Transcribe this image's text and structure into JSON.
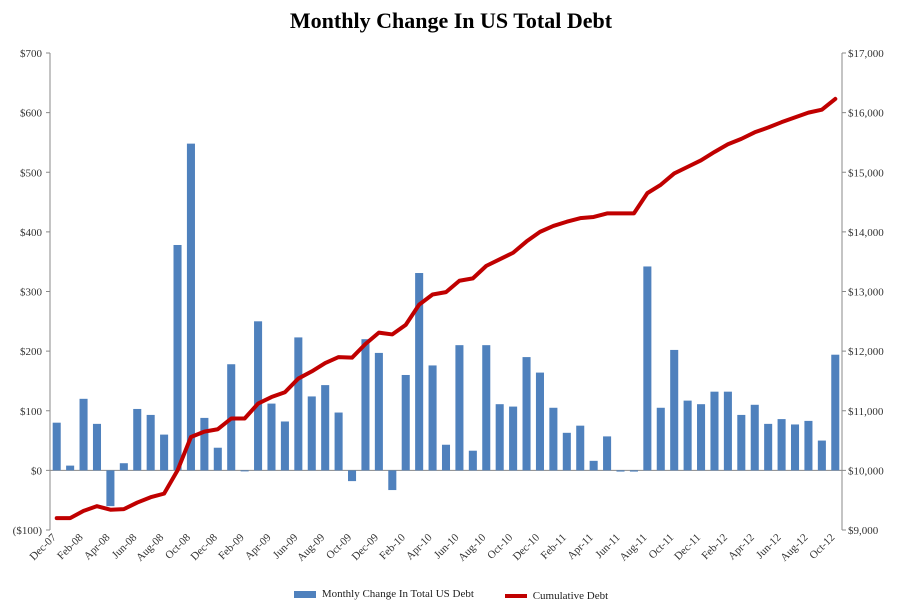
{
  "chart_data": {
    "type": "bar",
    "title": "Monthly Change In US Total Debt",
    "xlabel": "",
    "ylabel": "",
    "y_left": {
      "min": -100,
      "max": 700,
      "ticks": [
        "($100)",
        "$0",
        "$100",
        "$200",
        "$300",
        "$400",
        "$500",
        "$600",
        "$700"
      ]
    },
    "y_right": {
      "min": 9000,
      "max": 17000,
      "ticks": [
        "$9,000",
        "$10,000",
        "$11,000",
        "$12,000",
        "$13,000",
        "$14,000",
        "$15,000",
        "$16,000",
        "$17,000"
      ]
    },
    "categories": [
      "Dec-07",
      "Jan-08",
      "Feb-08",
      "Mar-08",
      "Apr-08",
      "May-08",
      "Jun-08",
      "Jul-08",
      "Aug-08",
      "Sep-08",
      "Oct-08",
      "Nov-08",
      "Dec-08",
      "Jan-09",
      "Feb-09",
      "Mar-09",
      "Apr-09",
      "May-09",
      "Jun-09",
      "Jul-09",
      "Aug-09",
      "Sep-09",
      "Oct-09",
      "Nov-09",
      "Dec-09",
      "Jan-10",
      "Feb-10",
      "Mar-10",
      "Apr-10",
      "May-10",
      "Jun-10",
      "Jul-10",
      "Aug-10",
      "Sep-10",
      "Oct-10",
      "Nov-10",
      "Dec-10",
      "Jan-11",
      "Feb-11",
      "Mar-11",
      "Apr-11",
      "May-11",
      "Jun-11",
      "Jul-11",
      "Aug-11",
      "Sep-11",
      "Oct-11",
      "Nov-11",
      "Dec-11",
      "Jan-12",
      "Feb-12",
      "Mar-12",
      "Apr-12",
      "May-12",
      "Jun-12",
      "Jul-12",
      "Aug-12",
      "Sep-12",
      "Oct-12"
    ],
    "x_tick_labels": [
      "Dec-07",
      "Feb-08",
      "Apr-08",
      "Jun-08",
      "Aug-08",
      "Oct-08",
      "Dec-08",
      "Feb-09",
      "Apr-09",
      "Jun-09",
      "Aug-09",
      "Oct-09",
      "Dec-09",
      "Feb-10",
      "Apr-10",
      "Jun-10",
      "Aug-10",
      "Oct-10",
      "Dec-10",
      "Feb-11",
      "Apr-11",
      "Jun-11",
      "Aug-11",
      "Oct-11",
      "Dec-11",
      "Feb-12",
      "Apr-12",
      "Jun-12",
      "Aug-12",
      "Oct-12"
    ],
    "series": [
      {
        "name": "Monthly Change In Total US Debt",
        "type": "bar",
        "axis": "left",
        "color": "#4f81bd",
        "values": [
          80,
          8,
          120,
          78,
          -60,
          12,
          103,
          93,
          60,
          378,
          548,
          88,
          38,
          178,
          0,
          250,
          112,
          82,
          223,
          124,
          143,
          97,
          -18,
          220,
          197,
          -33,
          160,
          331,
          176,
          43,
          210,
          33,
          210,
          111,
          107,
          190,
          164,
          105,
          63,
          75,
          16,
          57,
          -2,
          -2,
          342,
          105,
          202,
          117,
          111,
          132,
          132,
          93,
          110,
          78,
          86,
          77,
          83,
          50,
          194
        ]
      },
      {
        "name": "Cumulative Debt",
        "type": "line",
        "axis": "right",
        "color": "#c00000",
        "values": [
          9200,
          9200,
          9320,
          9400,
          9340,
          9350,
          9460,
          9550,
          9610,
          10000,
          10560,
          10650,
          10690,
          10870,
          10870,
          11120,
          11230,
          11310,
          11540,
          11660,
          11800,
          11900,
          11890,
          12120,
          12310,
          12280,
          12440,
          12780,
          12950,
          12990,
          13180,
          13220,
          13430,
          13540,
          13650,
          13840,
          14000,
          14100,
          14170,
          14230,
          14250,
          14310,
          14310,
          14310,
          14650,
          14790,
          14980,
          15090,
          15200,
          15340,
          15470,
          15560,
          15670,
          15750,
          15840,
          15920,
          16000,
          16050,
          16230
        ]
      }
    ],
    "legend_position": "bottom-center",
    "grid": false
  }
}
